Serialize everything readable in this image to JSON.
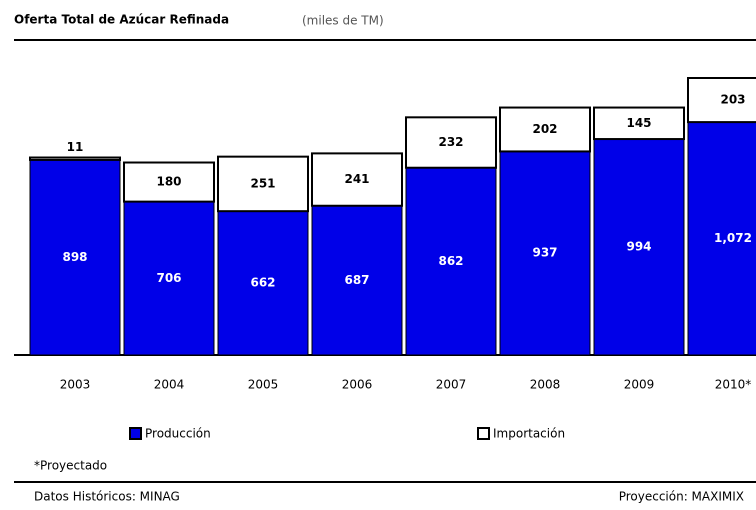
{
  "chart_data": {
    "type": "stacked-bar",
    "title": "Oferta Total de Azúcar Refinada",
    "subtitle": "(miles de TM)",
    "categories": [
      "2003",
      "2004",
      "2005",
      "2006",
      "2007",
      "2008",
      "2009",
      "2010*"
    ],
    "series": [
      {
        "name": "Producción",
        "color": "#0000e8",
        "values": [
          898,
          706,
          662,
          687,
          862,
          937,
          994,
          1072
        ],
        "value_labels": [
          "898",
          "706",
          "662",
          "687",
          "862",
          "937",
          "994",
          "1,072"
        ]
      },
      {
        "name": "Importación",
        "color": "#ffffff",
        "values": [
          11,
          180,
          251,
          241,
          232,
          202,
          145,
          203
        ]
      }
    ],
    "footnote": "*Proyectado",
    "source_left": "Datos Históricos: MINAG",
    "source_right": "Proyección: MAXIMIX"
  }
}
